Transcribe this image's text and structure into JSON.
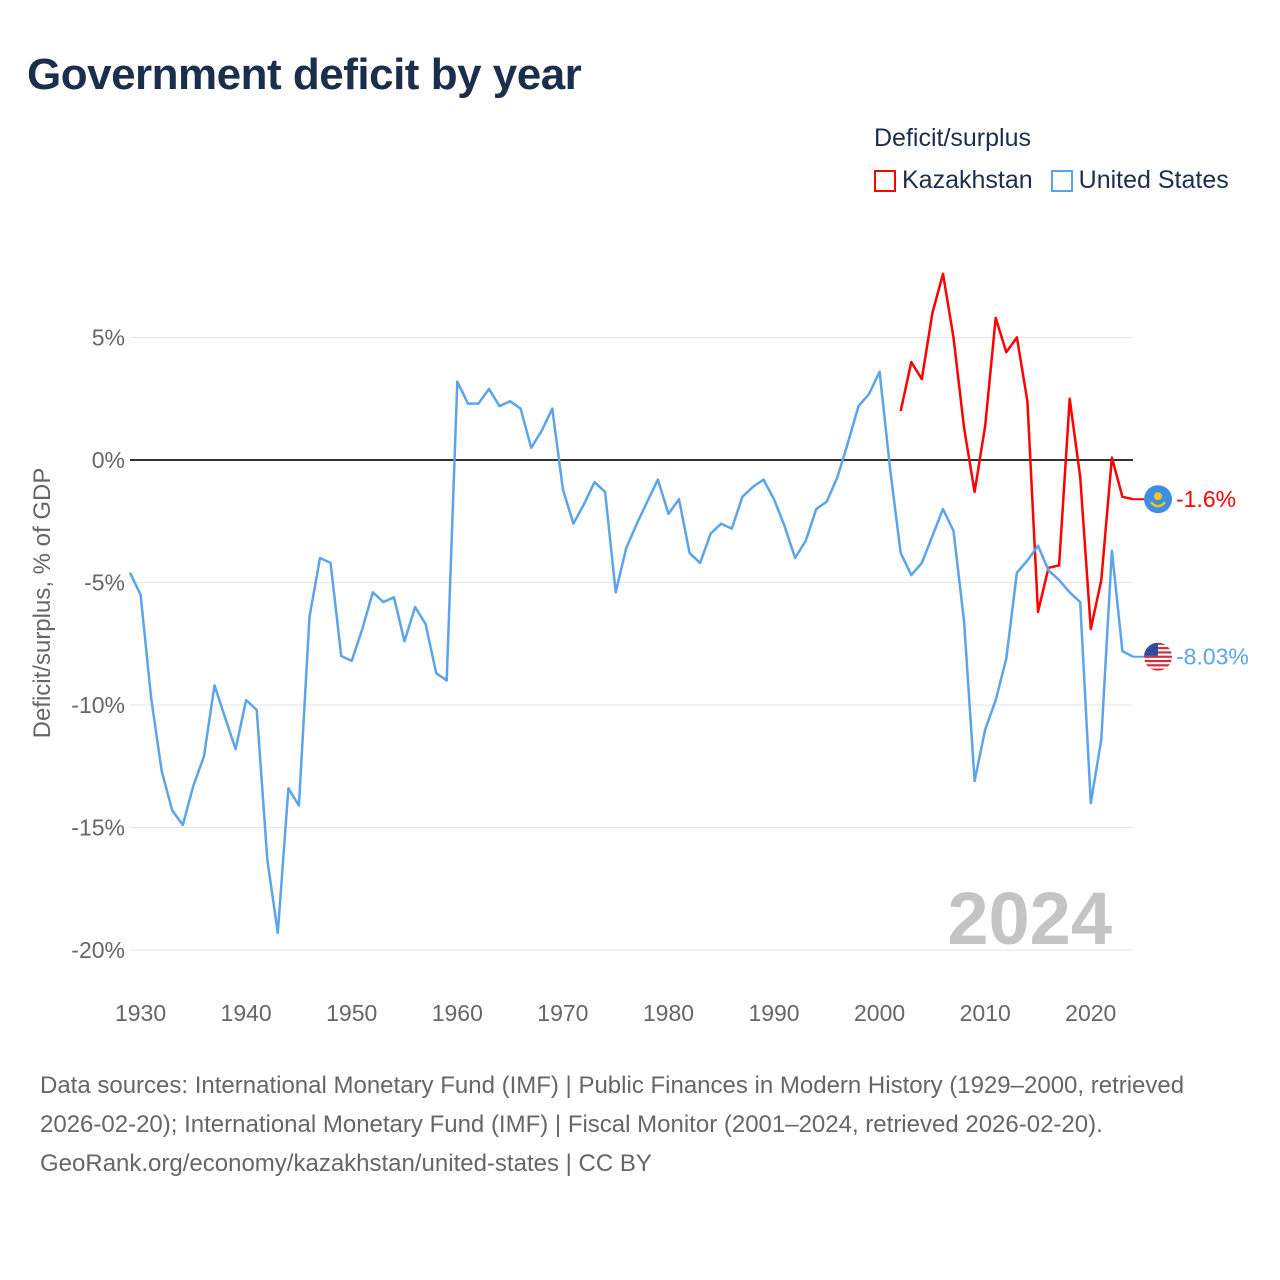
{
  "title": "Government deficit by year",
  "legend": {
    "title": "Deficit/surplus",
    "items": [
      {
        "label": "Kazakhstan",
        "color": "#ff0000"
      },
      {
        "label": "United States",
        "color": "#5ba4ea"
      }
    ]
  },
  "watermark_year": "2024",
  "footer": {
    "sources": "Data sources: International Monetary Fund (IMF) | Public Finances in Modern History (1929–2000, retrieved 2026-02-20); International Monetary Fund (IMF) | Fiscal Monitor (2001–2024, retrieved 2026-02-20).",
    "credit": "GeoRank.org/economy/kazakhstan/united-states | CC BY"
  },
  "chart_data": {
    "type": "line",
    "title": "Government deficit by year",
    "xlabel": "",
    "ylabel": "Deficit/surplus, % of GDP",
    "xlim": [
      1929,
      2024
    ],
    "ylim": [
      -21,
      8
    ],
    "x_ticks": [
      1930,
      1940,
      1950,
      1960,
      1970,
      1980,
      1990,
      2000,
      2010,
      2020
    ],
    "y_ticks": [
      {
        "value": 5,
        "label": "5%"
      },
      {
        "value": 0,
        "label": "0%"
      },
      {
        "value": -5,
        "label": "-5%"
      },
      {
        "value": -10,
        "label": "-10%"
      },
      {
        "value": -15,
        "label": "-15%"
      },
      {
        "value": -20,
        "label": "-20%"
      }
    ],
    "grid": true,
    "legend_position": "top-right",
    "series": [
      {
        "name": "Kazakhstan",
        "color": "#ff0000",
        "start_year": 2002,
        "end_label": "-1.6%",
        "values": [
          2.0,
          4.0,
          3.3,
          6.0,
          7.6,
          5.0,
          1.3,
          -1.3,
          1.4,
          5.8,
          4.4,
          5.0,
          2.4,
          -6.2,
          -4.4,
          -4.3,
          2.5,
          -0.7,
          -6.9,
          -4.9,
          0.1,
          -1.5,
          -1.6
        ]
      },
      {
        "name": "United States",
        "color": "#5ba4ea",
        "start_year": 1929,
        "end_label": "-8.03%",
        "values": [
          -4.6,
          -5.5,
          -9.7,
          -12.7,
          -14.3,
          -14.9,
          -13.3,
          -12.1,
          -9.2,
          -10.5,
          -11.8,
          -9.8,
          -10.2,
          -16.3,
          -19.3,
          -13.4,
          -14.1,
          -6.4,
          -4.0,
          -4.2,
          -8.0,
          -8.2,
          -6.9,
          -5.4,
          -5.8,
          -5.6,
          -7.4,
          -6.0,
          -6.7,
          -8.7,
          -9.0,
          3.2,
          2.3,
          2.3,
          2.9,
          2.2,
          2.4,
          2.1,
          0.5,
          1.2,
          2.1,
          -1.2,
          -2.6,
          -1.8,
          -0.9,
          -1.3,
          -5.4,
          -3.6,
          -2.6,
          -1.7,
          -0.8,
          -2.2,
          -1.6,
          -3.8,
          -4.2,
          -3.0,
          -2.6,
          -2.8,
          -1.5,
          -1.1,
          -0.8,
          -1.6,
          -2.7,
          -4.0,
          -3.3,
          -2.0,
          -1.7,
          -0.7,
          0.7,
          2.2,
          2.7,
          3.6,
          -0.4,
          -3.8,
          -4.7,
          -4.2,
          -3.1,
          -2.0,
          -2.9,
          -6.6,
          -13.1,
          -11.0,
          -9.8,
          -8.1,
          -4.6,
          -4.1,
          -3.5,
          -4.5,
          -4.9,
          -5.4,
          -5.8,
          -14.0,
          -11.4,
          -3.7,
          -7.8,
          -8.03
        ]
      }
    ]
  }
}
